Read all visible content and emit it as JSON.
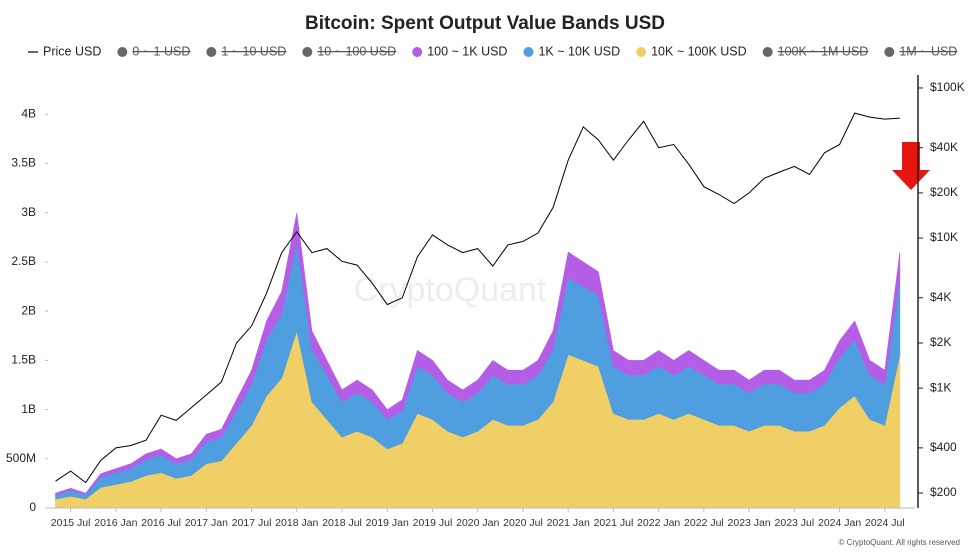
{
  "chart_data": {
    "type": "area",
    "title": "Bitcoin: Spent Output Value Bands USD",
    "watermark": "CryptoQuant",
    "footer": "© CryptoQuant. All rights reserved",
    "x": [
      "2015-05",
      "2015-07",
      "2015-09",
      "2015-11",
      "2016-01",
      "2016-03",
      "2016-05",
      "2016-07",
      "2016-09",
      "2016-11",
      "2017-01",
      "2017-03",
      "2017-05",
      "2017-07",
      "2017-09",
      "2017-11",
      "2018-01",
      "2018-03",
      "2018-05",
      "2018-07",
      "2018-09",
      "2018-11",
      "2019-01",
      "2019-03",
      "2019-05",
      "2019-07",
      "2019-09",
      "2019-11",
      "2020-01",
      "2020-03",
      "2020-05",
      "2020-07",
      "2020-09",
      "2020-11",
      "2021-01",
      "2021-03",
      "2021-05",
      "2021-07",
      "2021-09",
      "2021-11",
      "2022-01",
      "2022-03",
      "2022-05",
      "2022-07",
      "2022-09",
      "2022-11",
      "2023-01",
      "2023-03",
      "2023-05",
      "2023-07",
      "2023-09",
      "2023-11",
      "2024-01",
      "2024-03",
      "2024-05",
      "2024-07",
      "2024-09"
    ],
    "xlim": [
      "2015-04",
      "2024-11"
    ],
    "xticks": [
      {
        "value": "2015-07",
        "label": "2015 Jul"
      },
      {
        "value": "2016-01",
        "label": "2016 Jan"
      },
      {
        "value": "2016-07",
        "label": "2016 Jul"
      },
      {
        "value": "2017-01",
        "label": "2017 Jan"
      },
      {
        "value": "2017-07",
        "label": "2017 Jul"
      },
      {
        "value": "2018-01",
        "label": "2018 Jan"
      },
      {
        "value": "2018-07",
        "label": "2018 Jul"
      },
      {
        "value": "2019-01",
        "label": "2019 Jan"
      },
      {
        "value": "2019-07",
        "label": "2019 Jul"
      },
      {
        "value": "2020-01",
        "label": "2020 Jan"
      },
      {
        "value": "2020-07",
        "label": "2020 Jul"
      },
      {
        "value": "2021-01",
        "label": "2021 Jan"
      },
      {
        "value": "2021-07",
        "label": "2021 Jul"
      },
      {
        "value": "2022-01",
        "label": "2022 Jan"
      },
      {
        "value": "2022-07",
        "label": "2022 Jul"
      },
      {
        "value": "2023-01",
        "label": "2023 Jan"
      },
      {
        "value": "2023-07",
        "label": "2023 Jul"
      },
      {
        "value": "2024-01",
        "label": "2024 Jan"
      },
      {
        "value": "2024-07",
        "label": "2024 Jul"
      }
    ],
    "ylim": [
      0,
      4400000000
    ],
    "yticks": [
      0,
      {
        "value": 500000000,
        "label": "500M"
      },
      {
        "value": 1000000000,
        "label": "1B"
      },
      {
        "value": 1500000000,
        "label": "1.5B"
      },
      {
        "value": 2000000000,
        "label": "2B"
      },
      {
        "value": 2500000000,
        "label": "2.5B"
      },
      {
        "value": 3000000000,
        "label": "3B"
      },
      {
        "value": 3500000000,
        "label": "3.5B"
      },
      {
        "value": 4000000000,
        "label": "4B"
      }
    ],
    "y2lim": [
      159,
      122000
    ],
    "y2_log": true,
    "y2ticks": [
      {
        "value": 200,
        "label": "$200"
      },
      {
        "value": 400,
        "label": "$400"
      },
      {
        "value": 1000,
        "label": "$1K"
      },
      {
        "value": 2000,
        "label": "$2K"
      },
      {
        "value": 4000,
        "label": "$4K"
      },
      {
        "value": 10000,
        "label": "$10K"
      },
      {
        "value": 20000,
        "label": "$20K"
      },
      {
        "value": 40000,
        "label": "$40K"
      },
      {
        "value": 100000,
        "label": "$100K"
      }
    ],
    "series": [
      {
        "name": "Price USD",
        "color": "#000000",
        "axis": "y2",
        "kind": "line",
        "values": [
          240,
          280,
          235,
          330,
          400,
          415,
          450,
          660,
          610,
          740,
          900,
          1100,
          2000,
          2600,
          4300,
          8000,
          11000,
          8000,
          8500,
          7000,
          6600,
          5000,
          3600,
          4000,
          7500,
          10500,
          9000,
          8000,
          8500,
          6500,
          9000,
          9500,
          10800,
          16000,
          33000,
          55000,
          45000,
          33000,
          45000,
          60000,
          40000,
          42000,
          31000,
          22000,
          19500,
          17000,
          20000,
          25000,
          27500,
          30000,
          26500,
          37000,
          42000,
          68000,
          64000,
          62000,
          63000
        ]
      },
      {
        "name": "0 ~ 1 USD",
        "color": "#666666",
        "visible": false
      },
      {
        "name": "1 ~ 10 USD",
        "color": "#666666",
        "visible": false
      },
      {
        "name": "10 ~ 100 USD",
        "color": "#666666",
        "visible": false
      },
      {
        "name": "100 ~ 1K USD",
        "color": "#b45ee8",
        "kind": "area",
        "values": [
          15000000,
          20000000,
          15000000,
          35000000,
          40000000,
          45000000,
          55000000,
          60000000,
          50000000,
          55000000,
          75000000,
          80000000,
          110000000,
          140000000,
          190000000,
          220000000,
          300000000,
          180000000,
          150000000,
          120000000,
          130000000,
          120000000,
          100000000,
          110000000,
          160000000,
          150000000,
          130000000,
          120000000,
          130000000,
          150000000,
          140000000,
          140000000,
          150000000,
          180000000,
          260000000,
          250000000,
          240000000,
          160000000,
          150000000,
          150000000,
          160000000,
          150000000,
          160000000,
          150000000,
          140000000,
          140000000,
          130000000,
          140000000,
          140000000,
          130000000,
          130000000,
          140000000,
          170000000,
          190000000,
          150000000,
          140000000,
          260000000
        ]
      },
      {
        "name": "1K ~ 10K USD",
        "color": "#4f9ee0",
        "kind": "area",
        "values": [
          45000000,
          60000000,
          45000000,
          105000000,
          120000000,
          135000000,
          165000000,
          180000000,
          150000000,
          165000000,
          225000000,
          240000000,
          330000000,
          420000000,
          570000000,
          660000000,
          900000000,
          540000000,
          450000000,
          360000000,
          390000000,
          360000000,
          300000000,
          330000000,
          480000000,
          450000000,
          390000000,
          360000000,
          390000000,
          450000000,
          420000000,
          420000000,
          450000000,
          540000000,
          780000000,
          750000000,
          720000000,
          480000000,
          450000000,
          450000000,
          480000000,
          450000000,
          480000000,
          450000000,
          420000000,
          420000000,
          390000000,
          420000000,
          420000000,
          390000000,
          390000000,
          420000000,
          510000000,
          570000000,
          450000000,
          420000000,
          780000000
        ]
      },
      {
        "name": "10K ~ 100K USD",
        "color": "#f0cf66",
        "kind": "area",
        "values": [
          90000000,
          120000000,
          90000000,
          210000000,
          240000000,
          270000000,
          330000000,
          360000000,
          300000000,
          330000000,
          450000000,
          480000000,
          660000000,
          840000000,
          1140000000,
          1320000000,
          1800000000,
          1080000000,
          900000000,
          720000000,
          780000000,
          720000000,
          600000000,
          660000000,
          960000000,
          900000000,
          780000000,
          720000000,
          780000000,
          900000000,
          840000000,
          840000000,
          900000000,
          1080000000,
          1560000000,
          1500000000,
          1440000000,
          960000000,
          900000000,
          900000000,
          960000000,
          900000000,
          960000000,
          900000000,
          840000000,
          840000000,
          780000000,
          840000000,
          840000000,
          780000000,
          780000000,
          840000000,
          1020000000,
          1140000000,
          900000000,
          840000000,
          1560000000
        ]
      },
      {
        "name": "100K ~ 1M USD",
        "color": "#666666",
        "visible": false
      },
      {
        "name": "1M ~ USD",
        "color": "#666666",
        "visible": false
      }
    ]
  }
}
